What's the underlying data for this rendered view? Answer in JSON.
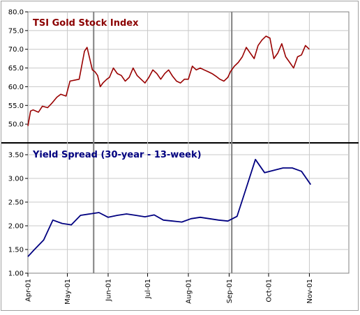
{
  "chart_data": [
    {
      "type": "line",
      "title": "TSI Gold Stock Index",
      "title_color": "#8b0000",
      "line_color": "#990000",
      "ylim": [
        45,
        80
      ],
      "yticks": [
        "80.0",
        "75.0",
        "70.0",
        "65.0",
        "60.0",
        "55.0",
        "50.0"
      ],
      "ytick_values": [
        80,
        75,
        70,
        65,
        60,
        55,
        50
      ],
      "grid": true,
      "series": [
        {
          "x": [
            "2001-04-01",
            "2001-04-03",
            "2001-04-05",
            "2001-04-09",
            "2001-04-12",
            "2001-04-16",
            "2001-04-19",
            "2001-04-23",
            "2001-04-26",
            "2001-04-30",
            "2001-05-03",
            "2001-05-07",
            "2001-05-10",
            "2001-05-14",
            "2001-05-16",
            "2001-05-18",
            "2001-05-20",
            "2001-05-22",
            "2001-05-24",
            "2001-05-26",
            "2001-05-28",
            "2001-05-31",
            "2001-06-02",
            "2001-06-05",
            "2001-06-08",
            "2001-06-11",
            "2001-06-14",
            "2001-06-17",
            "2001-06-20",
            "2001-06-23",
            "2001-06-26",
            "2001-06-29",
            "2001-07-02",
            "2001-07-05",
            "2001-07-08",
            "2001-07-11",
            "2001-07-14",
            "2001-07-17",
            "2001-07-20",
            "2001-07-23",
            "2001-07-26",
            "2001-07-29",
            "2001-08-01",
            "2001-08-04",
            "2001-08-07",
            "2001-08-10",
            "2001-08-13",
            "2001-08-16",
            "2001-08-19",
            "2001-08-22",
            "2001-08-25",
            "2001-08-28",
            "2001-08-31",
            "2001-09-02",
            "2001-09-05",
            "2001-09-08",
            "2001-09-11",
            "2001-09-14",
            "2001-09-17",
            "2001-09-20",
            "2001-09-23",
            "2001-09-26",
            "2001-09-29",
            "2001-10-02",
            "2001-10-05",
            "2001-10-08",
            "2001-10-11",
            "2001-10-14",
            "2001-10-17",
            "2001-10-20",
            "2001-10-23",
            "2001-10-26",
            "2001-10-29",
            "2001-11-01"
          ],
          "values": [
            49.5,
            53.5,
            53.8,
            53.2,
            54.8,
            54.4,
            55.5,
            57.2,
            58,
            57.5,
            61.5,
            61.8,
            62,
            69.5,
            70.5,
            67.5,
            64.5,
            64,
            63,
            60,
            61,
            62,
            62.5,
            65,
            63.5,
            63,
            61.5,
            62.5,
            65,
            63,
            62,
            61,
            62.5,
            64.5,
            63.5,
            62,
            63.5,
            64.5,
            62.8,
            61.5,
            61,
            62,
            62,
            65.5,
            64.5,
            65,
            64.5,
            64,
            63.5,
            62.8,
            62,
            61.5,
            62.5,
            64,
            65.5,
            66.5,
            68,
            70.5,
            69,
            67.5,
            71,
            72.5,
            73.5,
            73,
            67.5,
            69,
            71.5,
            68,
            66.5,
            65,
            68,
            68.5,
            71,
            70
          ]
        }
      ]
    },
    {
      "type": "line",
      "title": "Yield Spread (30-year - 13-week)",
      "title_color": "#000080",
      "line_color": "#000080",
      "ylim": [
        1.0,
        3.75
      ],
      "yticks": [
        "3.50",
        "3.00",
        "2.50",
        "2.00",
        "1.50",
        "1.00"
      ],
      "ytick_values": [
        3.5,
        3.0,
        2.5,
        2.0,
        1.5,
        1.0
      ],
      "grid": true,
      "series": [
        {
          "x": [
            "2001-04-01",
            "2001-04-06",
            "2001-04-13",
            "2001-04-20",
            "2001-04-27",
            "2001-05-04",
            "2001-05-11",
            "2001-05-18",
            "2001-05-25",
            "2001-06-01",
            "2001-06-08",
            "2001-06-15",
            "2001-06-22",
            "2001-06-29",
            "2001-07-06",
            "2001-07-13",
            "2001-07-20",
            "2001-07-27",
            "2001-08-03",
            "2001-08-10",
            "2001-08-17",
            "2001-08-24",
            "2001-08-31",
            "2001-09-07",
            "2001-09-14",
            "2001-09-21",
            "2001-09-28",
            "2001-10-05",
            "2001-10-12",
            "2001-10-19",
            "2001-10-26",
            "2001-11-02"
          ],
          "values": [
            1.35,
            1.5,
            1.7,
            2.12,
            2.05,
            2.02,
            2.22,
            2.25,
            2.28,
            2.18,
            2.22,
            2.25,
            2.22,
            2.19,
            2.23,
            2.12,
            2.1,
            2.08,
            2.15,
            2.18,
            2.15,
            2.12,
            2.1,
            2.2,
            2.8,
            3.4,
            3.12,
            3.17,
            3.22,
            3.22,
            3.15,
            2.87
          ]
        }
      ]
    }
  ],
  "x_axis": {
    "ticks": [
      "2001-04-01",
      "2001-05-01",
      "2001-06-01",
      "2001-07-01",
      "2001-08-01",
      "2001-09-01",
      "2001-10-01",
      "2001-11-01"
    ],
    "labels": [
      "Apr-01",
      "May-01",
      "Jun-01",
      "Jul-01",
      "Aug-01",
      "Sep-01",
      "Oct-01",
      "Nov-01"
    ],
    "range": [
      "2001-04-01",
      "2001-12-01"
    ]
  },
  "markers": [
    "2001-05-21",
    "2001-09-03"
  ]
}
